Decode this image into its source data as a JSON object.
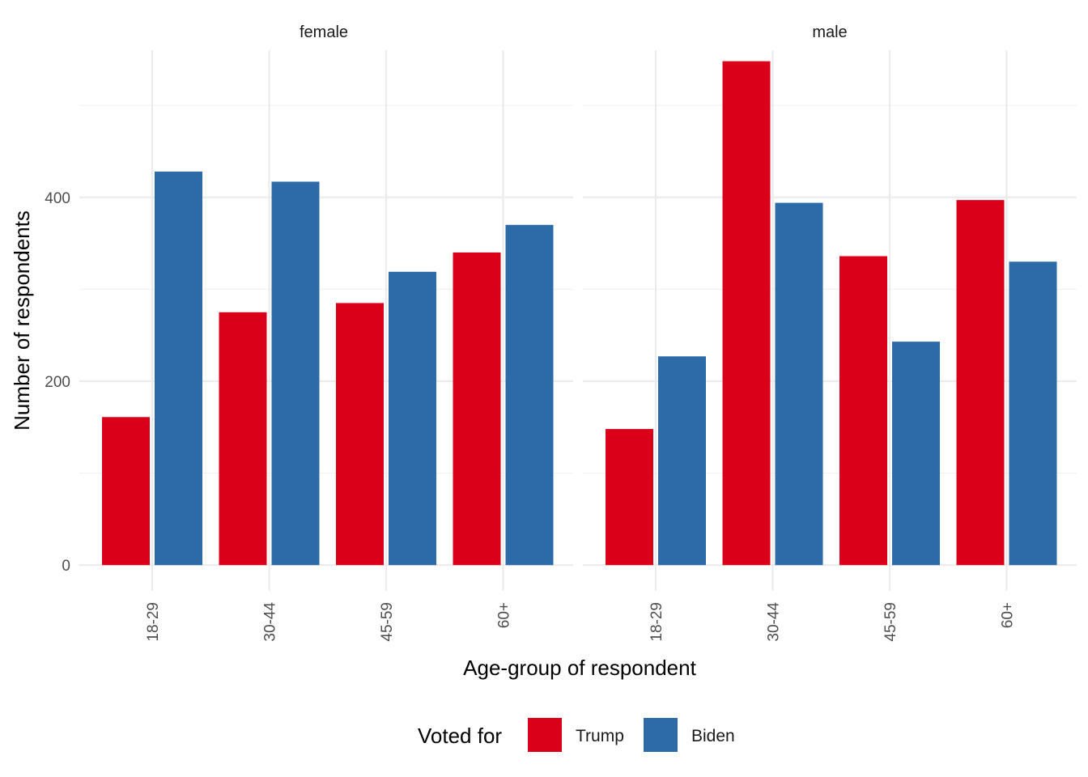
{
  "chart_data": {
    "type": "bar",
    "xlabel": "Age-group of respondent",
    "ylabel": "Number of respondents",
    "categories": [
      "18-29",
      "30-44",
      "45-59",
      "60+"
    ],
    "yticks": [
      0,
      200,
      400
    ],
    "ylim": [
      -28,
      560
    ],
    "grid": true,
    "legend": {
      "title": "Voted for",
      "position": "bottom",
      "entries": [
        {
          "name": "Trump",
          "color": "#db001a"
        },
        {
          "name": "Biden",
          "color": "#2c6aa8"
        }
      ]
    },
    "panels": [
      {
        "name": "female",
        "series": [
          {
            "name": "Trump",
            "color": "#db001a",
            "values": [
              161,
              275,
              285,
              340
            ]
          },
          {
            "name": "Biden",
            "color": "#2c6aa8",
            "values": [
              428,
              417,
              319,
              370
            ]
          }
        ]
      },
      {
        "name": "male",
        "series": [
          {
            "name": "Trump",
            "color": "#db001a",
            "values": [
              148,
              548,
              336,
              397
            ]
          },
          {
            "name": "Biden",
            "color": "#2c6aa8",
            "values": [
              227,
              394,
              243,
              330
            ]
          }
        ]
      }
    ]
  }
}
